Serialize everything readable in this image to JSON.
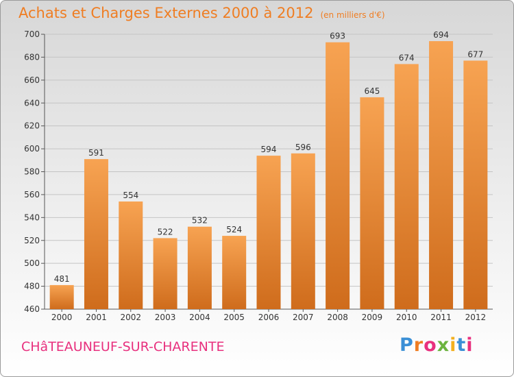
{
  "chart_data": {
    "type": "bar",
    "title": "Achats et Charges Externes 2000 à 2012",
    "subtitle": "(en milliers d'€)",
    "categories": [
      "2000",
      "2001",
      "2002",
      "2003",
      "2004",
      "2005",
      "2006",
      "2007",
      "2008",
      "2009",
      "2010",
      "2011",
      "2012"
    ],
    "values": [
      481,
      591,
      554,
      522,
      532,
      524,
      594,
      596,
      693,
      645,
      674,
      694,
      677
    ],
    "ylim": [
      460,
      700
    ],
    "yticks": [
      460,
      480,
      500,
      520,
      540,
      560,
      580,
      600,
      620,
      640,
      660,
      680,
      700
    ],
    "grid": true,
    "bar_color_top": "#f7a352",
    "bar_color_bottom": "#cf6c1c"
  },
  "footer": {
    "location": "CHâTEAUNEUF-SUR-CHARENTE",
    "logo_text": "Proxiti",
    "logo_colors": [
      "#3a8fd6",
      "#ef7d22",
      "#e8307e",
      "#6cb33f",
      "#f2b01e",
      "#3a8fd6",
      "#e8307e"
    ]
  }
}
